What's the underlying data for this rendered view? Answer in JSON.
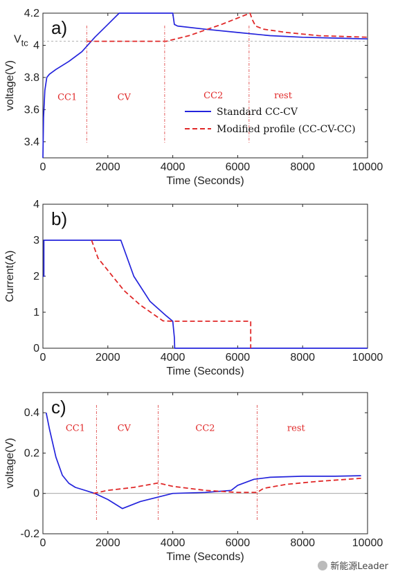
{
  "colors": {
    "standard": "#2323dc",
    "modified": "#e02828",
    "marker": "#e05050",
    "axis": "#222222"
  },
  "chart_data": [
    {
      "type": "line",
      "panel_label": "a)",
      "xlabel": "Time (Seconds)",
      "ylabel": "voltage(V)",
      "xlim": [
        0,
        10000
      ],
      "ylim": [
        3.3,
        4.2
      ],
      "xticks": [
        0,
        2000,
        4000,
        6000,
        8000,
        10000
      ],
      "yticks": [
        3.4,
        3.6,
        3.8,
        4.0,
        4.2
      ],
      "ytick_labels": [
        "3.4",
        "3.6",
        "3.8",
        "4",
        "4.2"
      ],
      "annotation_vtc": {
        "label": "V",
        "sub": "tc",
        "value": 4.025
      },
      "legend": {
        "position": "lower-right",
        "entries": [
          "Standard CC-CV",
          "Modified profile (CC-CV-CC)"
        ]
      },
      "phases": [
        {
          "label": "CC1",
          "x": 750,
          "y": 3.66,
          "line_x": 1350
        },
        {
          "label": "CV",
          "x": 2500,
          "y": 3.66,
          "line_x": 3750
        },
        {
          "label": "CC2",
          "x": 5250,
          "y": 3.67,
          "line_x": 6350
        },
        {
          "label": "rest",
          "x": 7400,
          "y": 3.67
        }
      ],
      "series": [
        {
          "name": "Standard CC-CV",
          "style": "solid",
          "x": [
            0,
            20,
            60,
            120,
            200,
            400,
            800,
            1200,
            1600,
            2000,
            2350,
            2400,
            4000,
            4050,
            4150,
            5000,
            6000,
            7000,
            8000,
            9000,
            10000
          ],
          "y": [
            3.3,
            3.55,
            3.72,
            3.8,
            3.82,
            3.85,
            3.9,
            3.96,
            4.05,
            4.13,
            4.2,
            4.2,
            4.2,
            4.13,
            4.12,
            4.1,
            4.08,
            4.06,
            4.05,
            4.045,
            4.04
          ]
        },
        {
          "name": "Modified profile (CC-CV-CC)",
          "style": "dashed",
          "x": [
            1350,
            1400,
            3800,
            4500,
            5500,
            6380,
            6450,
            6550,
            6800,
            7500,
            8500,
            10000
          ],
          "y": [
            4.025,
            4.025,
            4.025,
            4.06,
            4.13,
            4.2,
            4.16,
            4.12,
            4.1,
            4.08,
            4.06,
            4.05
          ]
        }
      ]
    },
    {
      "type": "line",
      "panel_label": "b)",
      "xlabel": "Time (Seconds)",
      "ylabel": "Current(A)",
      "xlim": [
        0,
        10000
      ],
      "ylim": [
        0,
        4
      ],
      "xticks": [
        0,
        2000,
        4000,
        6000,
        8000,
        10000
      ],
      "yticks": [
        0,
        1,
        2,
        3,
        4
      ],
      "ytick_labels": [
        "0",
        "1",
        "2",
        "3",
        "4"
      ],
      "series": [
        {
          "name": "Standard CC-CV",
          "style": "solid",
          "x": [
            0,
            30,
            30,
            2400,
            2800,
            3300,
            3800,
            4000,
            4050,
            4060,
            10000
          ],
          "y": [
            2.0,
            2.0,
            3.0,
            3.0,
            2.0,
            1.3,
            0.9,
            0.75,
            0.3,
            0,
            0
          ]
        },
        {
          "name": "Modified profile (CC-CV-CC)",
          "style": "dashed",
          "x": [
            1500,
            1700,
            2500,
            3000,
            3700,
            4000,
            6400,
            6400
          ],
          "y": [
            3.0,
            2.5,
            1.6,
            1.2,
            0.76,
            0.75,
            0.75,
            0
          ]
        }
      ]
    },
    {
      "type": "line",
      "panel_label": "c)",
      "xlabel": "Time (Seconds)",
      "ylabel": "voltage(V)",
      "xlim": [
        0,
        10000
      ],
      "ylim": [
        -0.2,
        0.5
      ],
      "xticks": [
        0,
        2000,
        4000,
        6000,
        8000,
        10000
      ],
      "yticks": [
        -0.2,
        0,
        0.2,
        0.4
      ],
      "ytick_labels": [
        "-0.2",
        "0",
        "0.2",
        "0.4"
      ],
      "zero_line": true,
      "phases": [
        {
          "label": "CC1",
          "x": 1000,
          "y": 0.31,
          "line_x": 1650
        },
        {
          "label": "CV",
          "x": 2500,
          "y": 0.31,
          "line_x": 3550
        },
        {
          "label": "CC2",
          "x": 5000,
          "y": 0.31,
          "line_x": 6600
        },
        {
          "label": "rest",
          "x": 7800,
          "y": 0.31
        }
      ],
      "series": [
        {
          "name": "Standard CC-CV",
          "style": "solid",
          "x": [
            100,
            200,
            400,
            600,
            800,
            1000,
            1600,
            2000,
            2450,
            3000,
            4000,
            5000,
            5800,
            6000,
            6500,
            7000,
            8000,
            9000,
            9800
          ],
          "y": [
            0.4,
            0.32,
            0.18,
            0.09,
            0.05,
            0.03,
            0.0,
            -0.03,
            -0.075,
            -0.04,
            0.0,
            0.005,
            0.015,
            0.04,
            0.07,
            0.08,
            0.085,
            0.085,
            0.088
          ]
        },
        {
          "name": "Modified profile (CC-CV-CC)",
          "style": "dashed",
          "x": [
            1550,
            2000,
            2800,
            3550,
            4000,
            5000,
            6000,
            6600,
            6800,
            7500,
            8500,
            9800
          ],
          "y": [
            0.0,
            0.015,
            0.03,
            0.052,
            0.035,
            0.015,
            0.005,
            0.005,
            0.025,
            0.045,
            0.06,
            0.075
          ]
        }
      ]
    }
  ],
  "watermark": {
    "text": "新能源Leader"
  }
}
